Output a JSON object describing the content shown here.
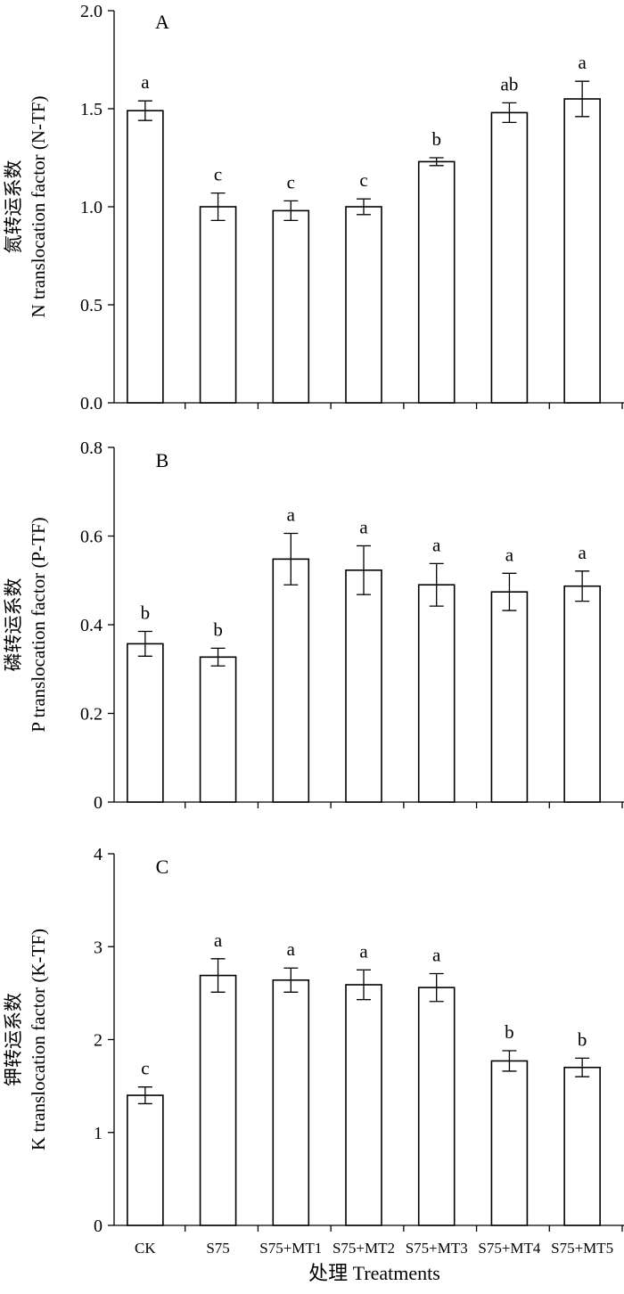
{
  "chart_data": [
    {
      "type": "bar",
      "panel": "A",
      "ylabel_cn": "氮转运系数",
      "ylabel": "N translocation factor (N-TF)",
      "ylim": [
        0,
        2.0
      ],
      "ticks": [
        0,
        0.5,
        1.0,
        1.5,
        2.0
      ],
      "tick_labels": [
        "0.0",
        "0.5",
        "1.0",
        "1.5",
        "2.0"
      ],
      "categories": [
        "CK",
        "S75",
        "S75+MT1",
        "S75+MT2",
        "S75+MT3",
        "S75+MT4",
        "S75+MT5"
      ],
      "values": [
        1.49,
        1.0,
        0.98,
        1.0,
        1.23,
        1.48,
        1.55
      ],
      "errors": [
        0.05,
        0.07,
        0.05,
        0.04,
        0.02,
        0.05,
        0.09
      ],
      "letters": [
        "a",
        "c",
        "c",
        "c",
        "b",
        "ab",
        "a"
      ]
    },
    {
      "type": "bar",
      "panel": "B",
      "ylabel_cn": "磷转运系数",
      "ylabel": "P translocation factor (P-TF)",
      "ylim": [
        0,
        0.8
      ],
      "ticks": [
        0,
        0.2,
        0.4,
        0.6,
        0.8
      ],
      "tick_labels": [
        "0",
        "0.2",
        "0.4",
        "0.6",
        "0.8"
      ],
      "categories": [
        "CK",
        "S75",
        "S75+MT1",
        "S75+MT2",
        "S75+MT3",
        "S75+MT4",
        "S75+MT5"
      ],
      "values": [
        0.357,
        0.327,
        0.548,
        0.523,
        0.49,
        0.474,
        0.487
      ],
      "errors": [
        0.028,
        0.02,
        0.058,
        0.055,
        0.048,
        0.042,
        0.034
      ],
      "letters": [
        "b",
        "b",
        "a",
        "a",
        "a",
        "a",
        "a"
      ]
    },
    {
      "type": "bar",
      "panel": "C",
      "ylabel_cn": "钾转运系数",
      "ylabel": "K translocation factor (K-TF)",
      "ylim": [
        0,
        4
      ],
      "ticks": [
        0,
        1,
        2,
        3,
        4
      ],
      "tick_labels": [
        "0",
        "1",
        "2",
        "3",
        "4"
      ],
      "categories": [
        "CK",
        "S75",
        "S75+MT1",
        "S75+MT2",
        "S75+MT3",
        "S75+MT4",
        "S75+MT5"
      ],
      "values": [
        1.4,
        2.69,
        2.64,
        2.59,
        2.56,
        1.77,
        1.7
      ],
      "errors": [
        0.09,
        0.18,
        0.13,
        0.16,
        0.15,
        0.11,
        0.1
      ],
      "letters": [
        "c",
        "a",
        "a",
        "a",
        "a",
        "b",
        "b"
      ]
    }
  ],
  "xlabel": "处理  Treatments"
}
